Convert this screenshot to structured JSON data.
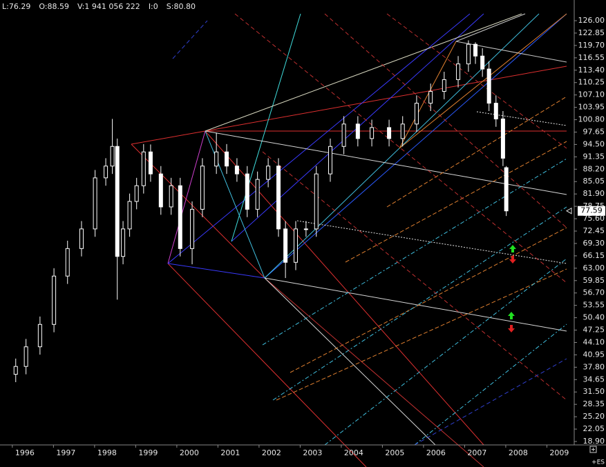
{
  "chart_data": {
    "type": "candlestick",
    "header": [
      "L:76.29",
      "O:88.59",
      "V:1 941 056 222",
      "I:0",
      "S:80.80"
    ],
    "symbol": "+ES",
    "color": "#ffffff",
    "x": [
      1995.78,
      1996.03,
      1996.37,
      1996.71,
      1997.04,
      1997.38,
      1997.71,
      1997.97,
      1998.13,
      1998.25,
      1998.39,
      1998.55,
      1998.72,
      1998.89,
      1999.06,
      1999.31,
      1999.56,
      1999.78,
      2000.07,
      2000.32,
      2000.66,
      2000.91,
      2001.16,
      2001.41,
      2001.66,
      2001.92,
      2002.17,
      2002.34,
      2002.59,
      2002.84,
      2003.09,
      2003.43,
      2003.76,
      2004.1,
      2004.44,
      2004.86,
      2005.19,
      2005.53,
      2005.87,
      2006.2,
      2006.54,
      2006.79,
      2006.96,
      2007.13,
      2007.29,
      2007.46,
      2007.63,
      2007.71
    ],
    "open": [
      36,
      38,
      43,
      48.7,
      61,
      68,
      73,
      86,
      89,
      94,
      66,
      73,
      80,
      84,
      92.6,
      87,
      78.6,
      84,
      68,
      78,
      89,
      92.6,
      89,
      87,
      78,
      85.6,
      89,
      73,
      64.5,
      73,
      73,
      87,
      94,
      99.7,
      96,
      98.8,
      96,
      99.7,
      105,
      108,
      111,
      115,
      120,
      117,
      113.7,
      105,
      101,
      88.59
    ],
    "high": [
      40,
      45,
      50.7,
      63,
      70,
      75,
      88,
      91,
      101,
      96,
      75,
      82,
      86,
      94.6,
      94.5,
      89,
      86,
      86,
      80,
      91,
      97.5,
      94.6,
      91,
      89,
      87.6,
      91,
      91,
      75,
      75,
      75,
      89,
      96,
      101.7,
      101.7,
      100.8,
      100.8,
      101.7,
      107,
      110,
      113,
      117,
      121,
      120.5,
      119,
      115.7,
      107,
      103,
      89
    ],
    "low": [
      34,
      36,
      41,
      46.7,
      59,
      66,
      71,
      84,
      87,
      55,
      64,
      71,
      78,
      82,
      85,
      76.6,
      76.6,
      66,
      64,
      76,
      87,
      87,
      85,
      76,
      76,
      83.6,
      71,
      60.5,
      62.5,
      71,
      71,
      85,
      92,
      94,
      94,
      94,
      94,
      97.7,
      103,
      106,
      109,
      113,
      115,
      111.7,
      103,
      99,
      89,
      76.29
    ],
    "close": [
      38,
      43,
      48.7,
      61,
      68,
      73,
      86,
      89,
      94,
      66,
      73,
      80,
      84,
      92.6,
      87,
      78.6,
      84,
      68,
      78,
      89,
      92.6,
      89,
      87,
      78,
      85.6,
      89,
      73,
      64.5,
      73,
      73,
      87,
      94,
      99.7,
      96,
      98.8,
      96,
      99.7,
      105,
      108,
      111,
      115,
      120,
      117,
      113.7,
      105,
      101,
      91,
      77.59
    ],
    "xlim": [
      1995.7,
      2009.48
    ],
    "xticks": [
      1996,
      1997,
      1998,
      1999,
      2000,
      2001,
      2002,
      2003,
      2004,
      2005,
      2006,
      2007,
      2008,
      2009
    ],
    "ylim": [
      18.9,
      126
    ],
    "yticks": [
      {
        "value": 126,
        "label": "126.00"
      },
      {
        "value": 122.85,
        "label": "122.85"
      },
      {
        "value": 119.7,
        "label": "119.70"
      },
      {
        "value": 116.55,
        "label": "116.55"
      },
      {
        "value": 113.4,
        "label": "113.40"
      },
      {
        "value": 110.25,
        "label": "110.25"
      },
      {
        "value": 107.1,
        "label": "107.10"
      },
      {
        "value": 103.95,
        "label": "103.95"
      },
      {
        "value": 100.8,
        "label": "100.80"
      },
      {
        "value": 97.65,
        "label": "97.65"
      },
      {
        "value": 94.5,
        "label": "94.50"
      },
      {
        "value": 91.35,
        "label": "91.35"
      },
      {
        "value": 88.2,
        "label": "88.20"
      },
      {
        "value": 85.05,
        "label": "85.05"
      },
      {
        "value": 81.9,
        "label": "81.90"
      },
      {
        "value": 78.75,
        "label": "78.75"
      },
      {
        "value": 75.6,
        "label": "75.60"
      },
      {
        "value": 72.45,
        "label": "72.45"
      },
      {
        "value": 69.3,
        "label": "69.30"
      },
      {
        "value": 66.15,
        "label": "66.15"
      },
      {
        "value": 63,
        "label": "63.00"
      },
      {
        "value": 59.85,
        "label": "59.85"
      },
      {
        "value": 56.7,
        "label": "56.70"
      },
      {
        "value": 53.55,
        "label": "53.55"
      },
      {
        "value": 50.4,
        "label": "50.40"
      },
      {
        "value": 47.25,
        "label": "47.25"
      },
      {
        "value": 44.1,
        "label": "44.10"
      },
      {
        "value": 40.95,
        "label": "40.95"
      },
      {
        "value": 37.8,
        "label": "37.80"
      },
      {
        "value": 34.65,
        "label": "34.65"
      },
      {
        "value": 31.5,
        "label": "31.50"
      },
      {
        "value": 28.35,
        "label": "28.35"
      },
      {
        "value": 25.2,
        "label": "25.20"
      },
      {
        "value": 22.05,
        "label": "22.05"
      },
      {
        "value": 18.9,
        "label": "18.90"
      }
    ]
  }
}
